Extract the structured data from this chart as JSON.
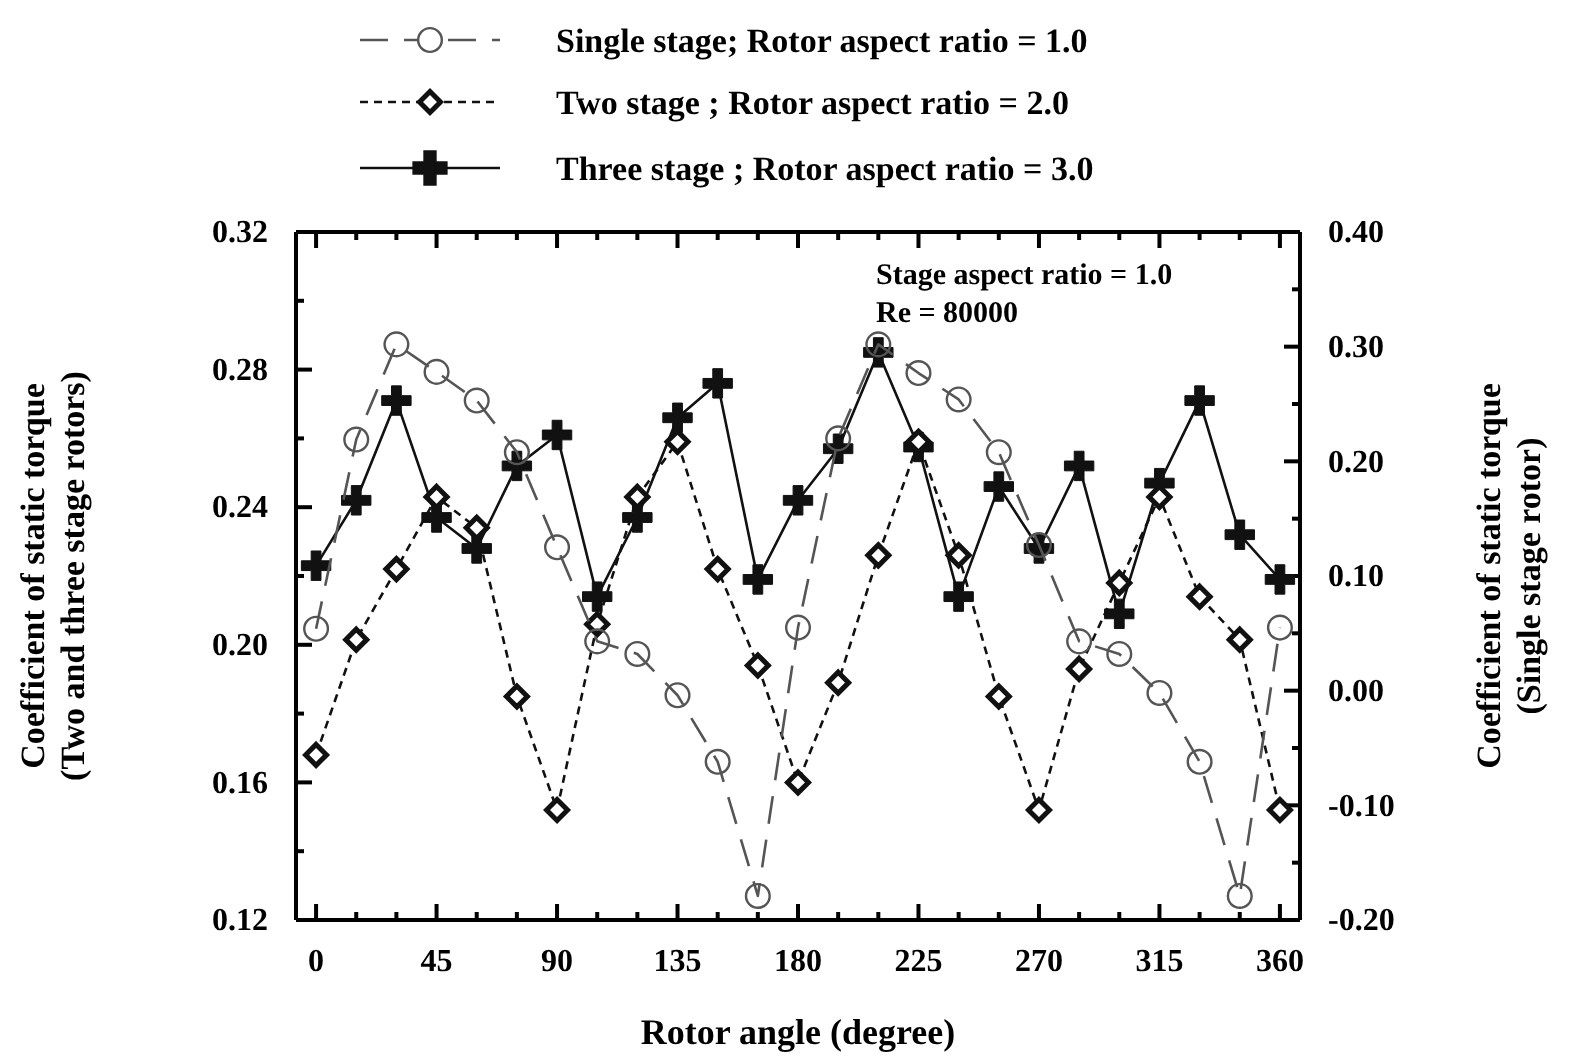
{
  "chart_data": {
    "type": "line",
    "xlabel": "Rotor angle (degree)",
    "ylabel": "Coefficient of static torque\n(Two and three stage rotors)",
    "y2label": "Coefficient of static torque\n(Single stage rotor)",
    "x": [
      0,
      15,
      30,
      45,
      60,
      75,
      90,
      105,
      120,
      135,
      150,
      165,
      180,
      195,
      210,
      225,
      240,
      255,
      270,
      285,
      300,
      315,
      330,
      345,
      360
    ],
    "xlim": [
      -7.5,
      367.5
    ],
    "xticks": [
      0,
      {
        "value": 15,
        "label": null
      },
      {
        "value": 30,
        "label": null
      },
      45,
      {
        "value": 60,
        "label": null
      },
      {
        "value": 75,
        "label": null
      },
      90,
      {
        "value": 105,
        "label": null
      },
      {
        "value": 120,
        "label": null
      },
      135,
      {
        "value": 150,
        "label": null
      },
      {
        "value": 165,
        "label": null
      },
      180,
      {
        "value": 195,
        "label": null
      },
      {
        "value": 210,
        "label": null
      },
      225,
      {
        "value": 240,
        "label": null
      },
      {
        "value": 255,
        "label": null
      },
      270,
      {
        "value": 285,
        "label": null
      },
      {
        "value": 300,
        "label": null
      },
      315,
      {
        "value": 330,
        "label": null
      },
      {
        "value": 345,
        "label": null
      },
      360
    ],
    "ylim": [
      0.12,
      0.32
    ],
    "yticks": [
      {
        "value": 0.12,
        "label": "0.12"
      },
      {
        "value": 0.14,
        "label": null
      },
      {
        "value": 0.16,
        "label": "0.16"
      },
      {
        "value": 0.18,
        "label": null
      },
      {
        "value": 0.2,
        "label": "0.20"
      },
      {
        "value": 0.22,
        "label": null
      },
      {
        "value": 0.24,
        "label": "0.24"
      },
      {
        "value": 0.26,
        "label": null
      },
      {
        "value": 0.28,
        "label": "0.28"
      },
      {
        "value": 0.3,
        "label": null
      },
      {
        "value": 0.32,
        "label": "0.32"
      }
    ],
    "y2lim": [
      -0.2,
      0.4
    ],
    "y2ticks": [
      {
        "value": -0.2,
        "label": "-0.20"
      },
      {
        "value": -0.15,
        "label": null
      },
      {
        "value": -0.1,
        "label": "-0.10"
      },
      {
        "value": -0.05,
        "label": null
      },
      {
        "value": 0,
        "label": "0.00"
      },
      {
        "value": 0.05,
        "label": null
      },
      {
        "value": 0.1,
        "label": "0.10"
      },
      {
        "value": 0.15,
        "label": null
      },
      {
        "value": 0.2,
        "label": "0.20"
      },
      {
        "value": 0.25,
        "label": null
      },
      {
        "value": 0.3,
        "label": "0.30"
      },
      {
        "value": 0.35,
        "label": null
      },
      {
        "value": 0.4,
        "label": "0.40"
      }
    ],
    "legend": "top",
    "grid": false,
    "series": [
      {
        "name": "Single stage; Rotor aspect ratio = 1.0",
        "color": "#555555",
        "axis": "y2",
        "marker": "circle",
        "line_style": "dashed",
        "values": [
          0.054,
          0.219,
          0.302,
          0.278,
          0.253,
          0.208,
          0.125,
          0.043,
          0.032,
          -0.004,
          -0.062,
          -0.179,
          0.055,
          0.22,
          0.302,
          0.277,
          0.254,
          0.208,
          0.127,
          0.043,
          0.032,
          -0.002,
          -0.062,
          -0.179,
          0.055
        ]
      },
      {
        "name": "Two stage ; Rotor aspect ratio = 2.0",
        "color": "#111111",
        "marker": "diamond",
        "line_style": "dotted",
        "values": [
          0.168,
          0.2015,
          0.222,
          0.243,
          0.234,
          0.185,
          0.152,
          0.206,
          0.243,
          0.259,
          0.222,
          0.194,
          0.16,
          0.189,
          0.226,
          0.259,
          0.226,
          0.185,
          0.152,
          0.193,
          0.218,
          0.243,
          0.214,
          0.2015,
          0.152
        ]
      },
      {
        "name": "Three stage ; Rotor aspect ratio = 3.0",
        "color": "#111111",
        "marker": "cross",
        "line_style": "solid",
        "values": [
          0.223,
          0.242,
          0.271,
          0.237,
          0.228,
          0.252,
          0.261,
          0.214,
          0.237,
          0.266,
          0.276,
          0.219,
          0.242,
          0.257,
          0.285,
          0.2575,
          0.214,
          0.246,
          0.228,
          0.252,
          0.209,
          0.247,
          0.271,
          0.232,
          0.219
        ]
      }
    ],
    "annotations": [
      "Stage aspect ratio = 1.0",
      "Re = 80000"
    ]
  }
}
